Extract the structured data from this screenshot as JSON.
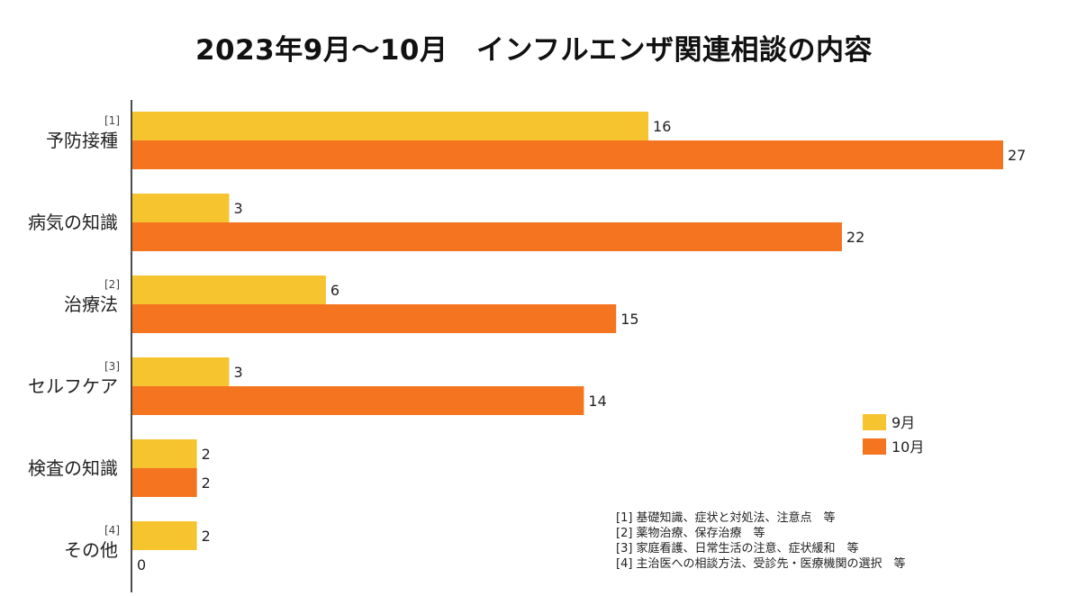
{
  "chart_data": {
    "type": "bar",
    "orientation": "horizontal",
    "title": "2023年9月～10月　インフルエンザ関連相談の内容",
    "categories": [
      {
        "label": "予防接種",
        "note": "[1]"
      },
      {
        "label": "病気の知識",
        "note": ""
      },
      {
        "label": "治療法",
        "note": "[2]"
      },
      {
        "label": "セルフケア",
        "note": "[3]"
      },
      {
        "label": "検査の知識",
        "note": ""
      },
      {
        "label": "その他",
        "note": "[4]"
      }
    ],
    "series": [
      {
        "name": "9月",
        "color": "#F6C42E",
        "values": [
          16,
          3,
          6,
          3,
          2,
          2
        ]
      },
      {
        "name": "10月",
        "color": "#F47420",
        "values": [
          27,
          22,
          15,
          14,
          2,
          0
        ]
      }
    ],
    "xlim": [
      0,
      27
    ],
    "grid": false,
    "legend_position": "right"
  },
  "footnotes": [
    "[1] 基礎知識、症状と対処法、注意点　等",
    "[2] 薬物治療、保存治療　等",
    "[3] 家庭看護、日常生活の注意、症状緩和　等",
    "[4] 主治医への相談方法、受診先・医療機関の選択　等"
  ]
}
